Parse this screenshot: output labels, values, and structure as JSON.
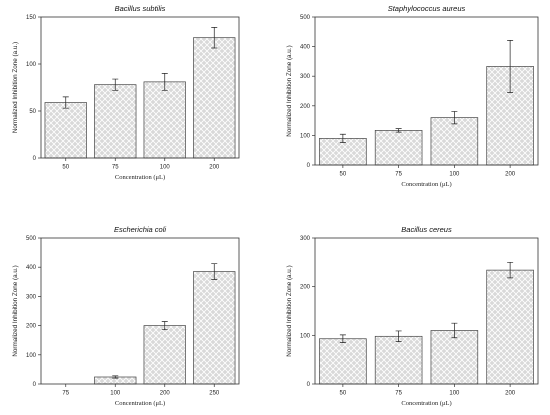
{
  "chart_data": [
    {
      "type": "bar",
      "title": "Bacillus subtilis",
      "xlabel": "Concentration (μL)",
      "ylabel": "Normalized Inhibition Zone (a.u.)",
      "categories": [
        "50",
        "75",
        "100",
        "200"
      ],
      "values": [
        59,
        78,
        81,
        128
      ],
      "errors": [
        6,
        6,
        9,
        11
      ],
      "ylim": [
        0,
        150
      ],
      "yticks": [
        0,
        50,
        100,
        150
      ],
      "bar_fill": "#d9d9d9",
      "hatch_color": "#ffffff"
    },
    {
      "type": "bar",
      "title": "Staphylococcus aureus",
      "xlabel": "Concentration (μL)",
      "ylabel": "Normalized Inhibition Zone (a.u.)",
      "categories": [
        "50",
        "75",
        "100",
        "200"
      ],
      "values": [
        90,
        117,
        160,
        333
      ],
      "errors": [
        14,
        6,
        21,
        88
      ],
      "ylim": [
        0,
        500
      ],
      "yticks": [
        0,
        100,
        200,
        300,
        400,
        500
      ],
      "bar_fill": "#d9d9d9",
      "hatch_color": "#ffffff"
    },
    {
      "type": "bar",
      "title": "Escherichia coli",
      "xlabel": "Concentration (μL)",
      "ylabel": "Normalized Inhibition Zone (a.u.)",
      "categories": [
        "75",
        "100",
        "200",
        "250"
      ],
      "values": [
        0,
        24,
        200,
        385
      ],
      "errors": [
        0,
        4,
        14,
        27
      ],
      "ylim": [
        0,
        500
      ],
      "yticks": [
        0,
        100,
        200,
        300,
        400,
        500
      ],
      "bar_fill": "#d9d9d9",
      "hatch_color": "#ffffff"
    },
    {
      "type": "bar",
      "title": "Bacillus cereus",
      "xlabel": "Concentration (μL)",
      "ylabel": "Normalized Inhibition Zone (a.u.)",
      "categories": [
        "50",
        "75",
        "100",
        "200"
      ],
      "values": [
        93,
        98,
        110,
        234
      ],
      "errors": [
        8,
        11,
        15,
        16
      ],
      "ylim": [
        0,
        300
      ],
      "yticks": [
        0,
        100,
        200,
        300
      ],
      "bar_fill": "#d9d9d9",
      "hatch_color": "#ffffff"
    }
  ]
}
